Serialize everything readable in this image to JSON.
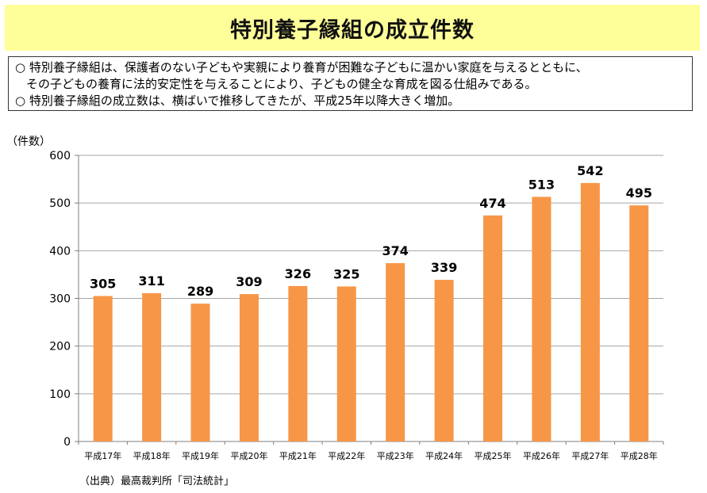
{
  "header": {
    "title": "特別養子縁組の成立件数"
  },
  "summary": {
    "bullet_1_line_1": "○ 特別養子縁組は、保護者のない子どもや実親により養育が困難な子どもに温かい家庭を与えるとともに、",
    "bullet_1_line_2": "その子どもの養育に法的安定性を与えることにより、子どもの健全な育成を図る仕組みである。",
    "bullet_2": "○ 特別養子縁組の成立数は、横ばいで推移してきたが、平成25年以降大きく増加。"
  },
  "chart_data": {
    "type": "bar",
    "title": "",
    "ylabel": "（件数）",
    "xlabel": "",
    "categories": [
      "平成17年",
      "平成18年",
      "平成19年",
      "平成20年",
      "平成21年",
      "平成22年",
      "平成23年",
      "平成24年",
      "平成25年",
      "平成26年",
      "平成27年",
      "平成28年"
    ],
    "values": [
      305,
      311,
      289,
      309,
      326,
      325,
      374,
      339,
      474,
      513,
      542,
      495
    ],
    "ylim": [
      0,
      600
    ],
    "yticks": [
      0,
      100,
      200,
      300,
      400,
      500,
      600
    ],
    "grid": true,
    "legend": "none",
    "bar_color": "#f79646"
  },
  "footer": {
    "source": "（出典）最高裁判所「司法統計」"
  }
}
